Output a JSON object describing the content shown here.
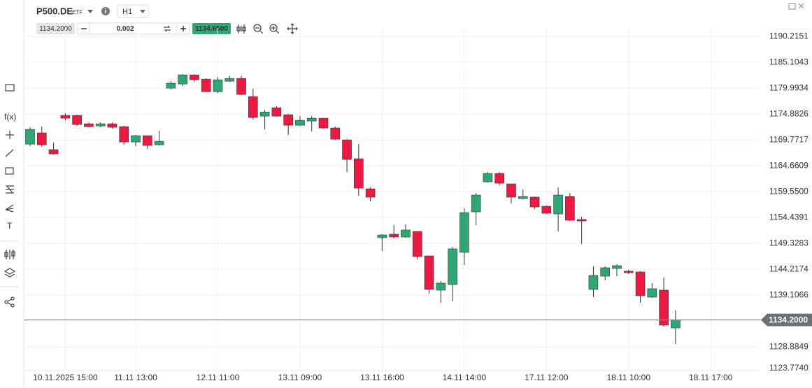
{
  "toolbar": {
    "symbol": "P500.DE",
    "symbol_type": "ETF",
    "timeframe": "H1",
    "bid": "1134.2000",
    "quantity": "0.002",
    "ask": "1134.6500"
  },
  "left_toolbar": {
    "function": "f(x)",
    "text_tool": "T"
  },
  "chart_data": {
    "type": "candlestick",
    "categories": [
      null,
      null,
      null,
      "10.11.2025 15:00",
      null,
      null,
      null,
      null,
      null,
      "11.11 13:00",
      null,
      null,
      null,
      null,
      null,
      null,
      "12.11 11:00",
      null,
      null,
      null,
      null,
      null,
      null,
      "13.11 09:00",
      null,
      null,
      null,
      null,
      null,
      null,
      "13.11 16:00",
      null,
      null,
      null,
      null,
      null,
      null,
      "14.11 14:00",
      null,
      null,
      null,
      null,
      null,
      null,
      "17.11 12:00",
      null,
      null,
      null,
      null,
      null,
      null,
      "18.11 10:00",
      null,
      null,
      null,
      null,
      null,
      null,
      "18.11 17:00"
    ],
    "open": [
      1168.95,
      1171.16,
      1167.85,
      1174.61,
      1174.61,
      1172.96,
      1172.54,
      1172.96,
      1172.4,
      1169.37,
      1170.61,
      1168.81,
      1180.0,
      1180.83,
      1182.62,
      1181.79,
      1179.31,
      1181.38,
      1181.93,
      1178.34,
      1174.48,
      1176.13,
      1174.75,
      1172.68,
      1173.51,
      1174.06,
      1172.13,
      1169.78,
      1166.05,
      1160.11,
      1150.45,
      1151.14,
      1150.59,
      1151.69,
      1146.85,
      1140.09,
      1141.19,
      1147.55,
      1155.56,
      1161.49,
      1163.15,
      1161.08,
      1158.18,
      1158.46,
      1156.66,
      1155.14,
      1158.6,
      1154.04,
      1140.23,
      1142.85,
      1144.37,
      1143.82,
      1143.68,
      1138.71,
      1140.09,
      1132.63,
      null,
      null,
      null
    ],
    "high": [
      1172.27,
      1172.4,
      1169.23,
      1175.03,
      1174.75,
      1173.23,
      1173.23,
      1173.23,
      1172.54,
      1170.75,
      1170.61,
      1171.58,
      1181.38,
      1182.76,
      1182.76,
      1181.93,
      1182.21,
      1182.48,
      1182.48,
      1179.86,
      1175.72,
      1176.41,
      1174.89,
      1174.48,
      1174.48,
      1174.06,
      1172.4,
      1169.92,
      1168.95,
      1160.39,
      1151.14,
      1152.93,
      1153.07,
      1151.69,
      1146.85,
      1141.88,
      1148.65,
      1156.25,
      1159.28,
      1163.43,
      1163.43,
      1161.08,
      1159.98,
      1158.6,
      1156.8,
      1160.39,
      1159.28,
      1154.59,
      1144.79,
      1144.79,
      1145.2,
      1144.09,
      1143.82,
      1141.47,
      1142.57,
      1136.08,
      null,
      null,
      null
    ],
    "low": [
      1168.54,
      1168.4,
      1166.88,
      1173.65,
      1172.54,
      1172.27,
      1172.27,
      1171.99,
      1168.81,
      1168.54,
      1167.99,
      1168.68,
      1179.72,
      1180.41,
      1181.24,
      1179.31,
      1179.03,
      1181.24,
      1178.62,
      1173.78,
      1171.85,
      1174.34,
      1170.75,
      1172.54,
      1171.44,
      1171.99,
      1169.78,
      1163.43,
      1158.73,
      1157.63,
      1147.82,
      1150.31,
      1150.45,
      1146.17,
      1139.4,
      1137.6,
      1137.88,
      1145.06,
      1152.93,
      1161.36,
      1160.8,
      1157.21,
      1158.04,
      1156.11,
      1155.14,
      1151.69,
      1153.76,
      1149.2,
      1138.71,
      1142.02,
      1142.85,
      1143.26,
      1137.6,
      1138.57,
      1132.91,
      1129.45,
      null,
      null,
      null
    ],
    "close": [
      1171.85,
      1168.81,
      1167.02,
      1174.06,
      1172.82,
      1172.4,
      1172.96,
      1172.27,
      1169.37,
      1170.61,
      1168.68,
      1169.5,
      1180.97,
      1182.62,
      1181.66,
      1179.31,
      1181.66,
      1181.93,
      1178.76,
      1174.2,
      1175.3,
      1174.48,
      1172.68,
      1173.65,
      1174.06,
      1172.13,
      1169.92,
      1165.91,
      1160.25,
      1158.46,
      1151.0,
      1150.59,
      1151.97,
      1146.72,
      1140.23,
      1141.47,
      1148.24,
      1155.42,
      1158.87,
      1163.15,
      1161.22,
      1158.46,
      1158.6,
      1156.52,
      1155.28,
      1158.87,
      1153.9,
      1153.76,
      1142.99,
      1144.51,
      1144.92,
      1143.54,
      1138.99,
      1140.37,
      1133.18,
      1134.2,
      null,
      null,
      null
    ],
    "up_color": "#2fa774",
    "down_color": "#ec1a43",
    "ylim": [
      1124.2,
      1191.9
    ],
    "yticks": [
      1190.2151,
      1185.1043,
      1179.9934,
      1174.8826,
      1169.7717,
      1164.6609,
      {
        "value": 1159.55,
        "label": "1159.5500"
      },
      1154.4391,
      1149.3283,
      1144.2174,
      1139.1066,
      1128.8849,
      {
        "value": 1123.774,
        "label": "1123.7740"
      }
    ],
    "grid": true,
    "last_price": {
      "value": 1134.2,
      "label": "1134.2000"
    }
  }
}
